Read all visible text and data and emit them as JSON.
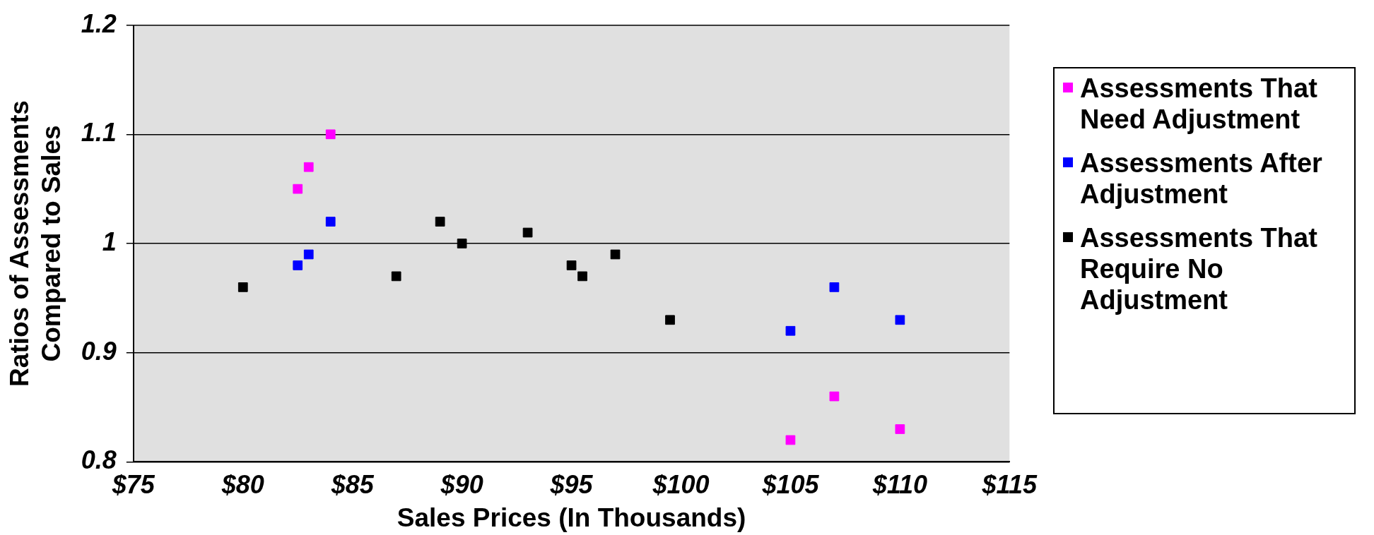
{
  "chart_data": {
    "type": "scatter",
    "xlabel": "Sales Prices (In Thousands)",
    "ylabel": "Ratios of Assessments Compared to Sales",
    "xlim": [
      75,
      115
    ],
    "xticks": [
      {
        "value": 75,
        "label": "$75"
      },
      {
        "value": 80,
        "label": "$80"
      },
      {
        "value": 85,
        "label": "$85"
      },
      {
        "value": 90,
        "label": "$90"
      },
      {
        "value": 95,
        "label": "$95"
      },
      {
        "value": 100,
        "label": "$100"
      },
      {
        "value": 105,
        "label": "$105"
      },
      {
        "value": 110,
        "label": "$110"
      },
      {
        "value": 115,
        "label": "$115"
      }
    ],
    "ylim": [
      0.8,
      1.2
    ],
    "yticks": [
      0.8,
      0.9,
      1,
      1.1,
      1.2
    ],
    "grid": "y",
    "legend": "right",
    "marker": "square",
    "series": [
      {
        "name": "Assessments That Need Adjustment",
        "color": "#ff00ff",
        "x": [
          82.5,
          83,
          84,
          105,
          107,
          110
        ],
        "values": [
          1.05,
          1.07,
          1.1,
          0.82,
          0.86,
          0.83
        ]
      },
      {
        "name": "Assessments After Adjustment",
        "color": "#0000ff",
        "x": [
          82.5,
          83,
          84,
          105,
          107,
          110
        ],
        "values": [
          0.98,
          0.99,
          1.02,
          0.92,
          0.96,
          0.93
        ]
      },
      {
        "name": "Assessments That Require No Adjustment",
        "color": "#000000",
        "x": [
          80,
          87,
          89,
          90,
          93,
          95,
          95.5,
          97,
          99.5
        ],
        "values": [
          0.96,
          0.97,
          1.02,
          1,
          1.01,
          0.98,
          0.97,
          0.99,
          0.93
        ]
      }
    ]
  }
}
